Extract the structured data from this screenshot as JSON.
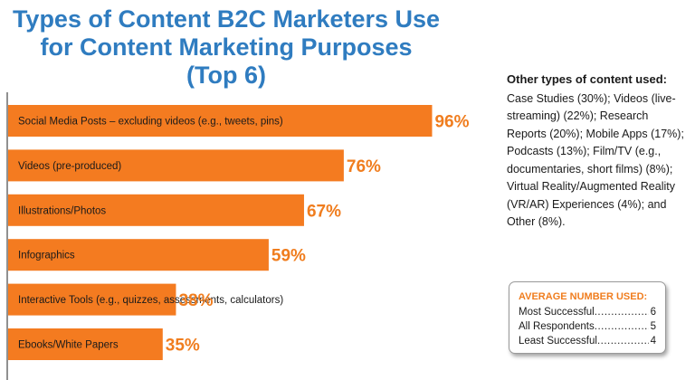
{
  "title_lines": [
    "Types of Content B2C Marketers Use",
    "for Content Marketing Purposes",
    "(Top 6)"
  ],
  "colors": {
    "title": "#2f7cc0",
    "bar": "#f47b20",
    "value_label": "#f07d1e",
    "bar_text": "#1a1a1a"
  },
  "chart_data": {
    "type": "bar",
    "orientation": "horizontal",
    "title": "Types of Content B2C Marketers Use for Content Marketing Purposes (Top 6)",
    "categories": [
      "Social Media Posts – excluding videos (e.g., tweets, pins)",
      "Videos (pre-produced)",
      "Illustrations/Photos",
      "Infographics",
      "Interactive Tools (e.g., quizzes, assessments, calculators)",
      "Ebooks/White Papers"
    ],
    "values": [
      96,
      76,
      67,
      59,
      38,
      35
    ],
    "value_labels": [
      "96%",
      "76%",
      "67%",
      "59%",
      "38%",
      "35%"
    ],
    "xlim": [
      0,
      100
    ],
    "grid": false,
    "legend": "none"
  },
  "other_types": {
    "heading": "Other types of content used:",
    "lines": [
      "Case Studies (30%); Videos (live-",
      "streaming) (22%); Research",
      "Reports (20%); Mobile Apps (17%);",
      "Podcasts (13%); Film/TV (e.g.,",
      "documentaries, short films) (8%);",
      "Virtual Reality/Augmented Reality",
      "(VR/AR) Experiences (4%); and",
      "Other (8%)."
    ]
  },
  "average_number": {
    "heading": "AVERAGE NUMBER USED:",
    "rows": [
      {
        "label": "Most Successful",
        "value": "6"
      },
      {
        "label": "All Respondents",
        "value": "5"
      },
      {
        "label": "Least Successful",
        "value": "4"
      }
    ]
  }
}
